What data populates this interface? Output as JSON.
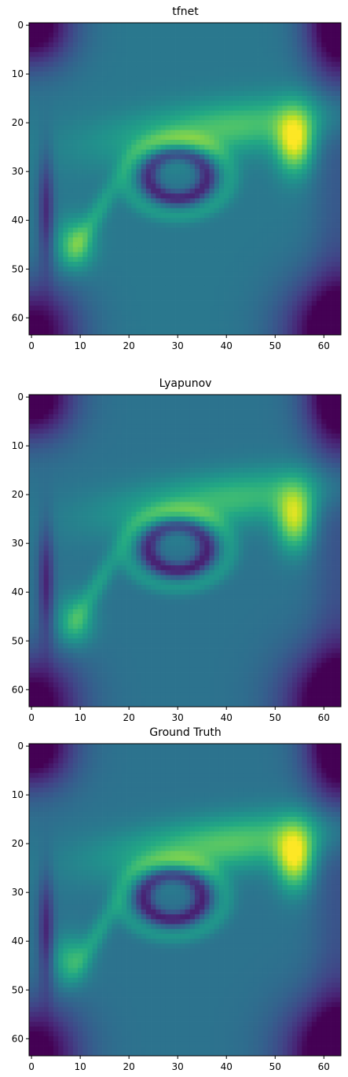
{
  "chart_data": [
    {
      "type": "heatmap",
      "title": "tfnet",
      "grid_size": [
        64,
        64
      ],
      "xlim": [
        -0.5,
        63.5
      ],
      "ylim": [
        63.5,
        -0.5
      ],
      "x_ticks": [
        0,
        10,
        20,
        30,
        40,
        50,
        60
      ],
      "y_ticks": [
        0,
        10,
        20,
        30,
        40,
        50,
        60
      ],
      "colormap": "viridis",
      "grid": false,
      "legend": "none",
      "features": {
        "base": 0.4,
        "band": {
          "center_row": 21,
          "peak_col": 40,
          "strength": 0.32
        },
        "bright_spot": {
          "row": 24,
          "col": 54,
          "value": 0.98
        },
        "dark_loop": {
          "row": 31,
          "col": 30
        },
        "secondary_spot": {
          "row": 45,
          "col": 9,
          "value": 0.8
        }
      }
    },
    {
      "type": "heatmap",
      "title": "Lyapunov",
      "grid_size": [
        64,
        64
      ],
      "xlim": [
        -0.5,
        63.5
      ],
      "ylim": [
        63.5,
        -0.5
      ],
      "x_ticks": [
        0,
        10,
        20,
        30,
        40,
        50,
        60
      ],
      "y_ticks": [
        0,
        10,
        20,
        30,
        40,
        50,
        60
      ],
      "colormap": "viridis",
      "grid": false,
      "legend": "none",
      "features": {
        "base": 0.38,
        "band": {
          "center_row": 21,
          "peak_col": 40,
          "strength": 0.3
        },
        "bright_spot": {
          "row": 25,
          "col": 54,
          "value": 0.94
        },
        "dark_loop": {
          "row": 31,
          "col": 30
        },
        "secondary_spot": {
          "row": 46,
          "col": 9,
          "value": 0.74
        }
      }
    },
    {
      "type": "heatmap",
      "title": "Ground Truth",
      "grid_size": [
        64,
        64
      ],
      "xlim": [
        -0.5,
        63.5
      ],
      "ylim": [
        63.5,
        -0.5
      ],
      "x_ticks": [
        0,
        10,
        20,
        30,
        40,
        50,
        60
      ],
      "y_ticks": [
        0,
        10,
        20,
        30,
        40,
        50,
        60
      ],
      "colormap": "viridis",
      "grid": false,
      "legend": "none",
      "features": {
        "base": 0.38,
        "band": {
          "center_row": 20,
          "peak_col": 40,
          "strength": 0.36
        },
        "bright_spot": {
          "row": 23,
          "col": 54,
          "value": 0.99
        },
        "dark_loop": {
          "row": 31,
          "col": 29
        },
        "secondary_spot": {
          "row": 44,
          "col": 8,
          "value": 0.72
        }
      }
    }
  ]
}
